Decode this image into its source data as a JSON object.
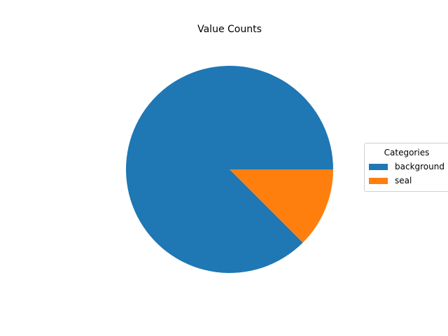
{
  "chart_data": {
    "type": "pie",
    "title": "Value Counts",
    "legend": {
      "title": "Categories",
      "placement": "center-right"
    },
    "slices": [
      {
        "label": "background",
        "value": 87.5,
        "color": "#1f77b4"
      },
      {
        "label": "seal",
        "value": 12.5,
        "color": "#ff7f0e"
      }
    ],
    "start_angle_deg": 0,
    "direction": "counterclockwise"
  }
}
